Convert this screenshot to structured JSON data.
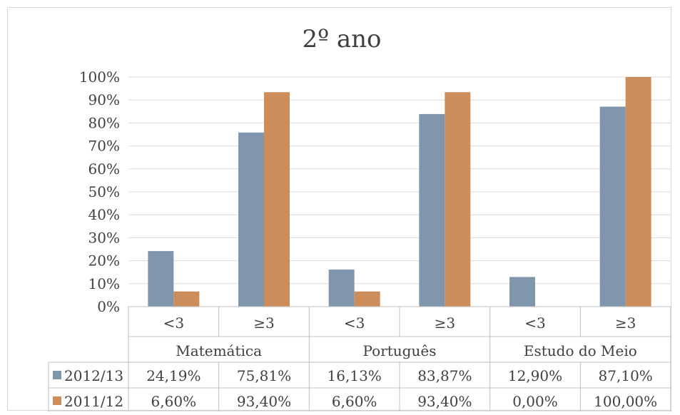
{
  "chart_data": {
    "type": "bar",
    "title": "2º ano",
    "xlabel": "",
    "ylabel": "",
    "ylim": [
      0,
      100
    ],
    "ytick_labels": [
      "0%",
      "10%",
      "20%",
      "30%",
      "40%",
      "50%",
      "60%",
      "70%",
      "80%",
      "90%",
      "100%"
    ],
    "groups": [
      "Matemática",
      "Português",
      "Estudo do Meio"
    ],
    "categories": [
      "<3",
      "≥3",
      "<3",
      "≥3",
      "<3",
      "≥3"
    ],
    "grid": true,
    "legend": "data-table-left",
    "series": [
      {
        "name": "2012/13",
        "color": "#7f96ad",
        "values": [
          24.19,
          75.81,
          16.13,
          83.87,
          12.9,
          87.1
        ],
        "labels": [
          "24,19%",
          "75,81%",
          "16,13%",
          "83,87%",
          "12,90%",
          "87,10%"
        ]
      },
      {
        "name": "2011/12",
        "color": "#cc8d5a",
        "values": [
          6.6,
          93.4,
          6.6,
          93.4,
          0.0,
          100.0
        ],
        "labels": [
          "6,60%",
          "93,40%",
          "6,60%",
          "93,40%",
          "0,00%",
          "100,00%"
        ]
      }
    ]
  }
}
